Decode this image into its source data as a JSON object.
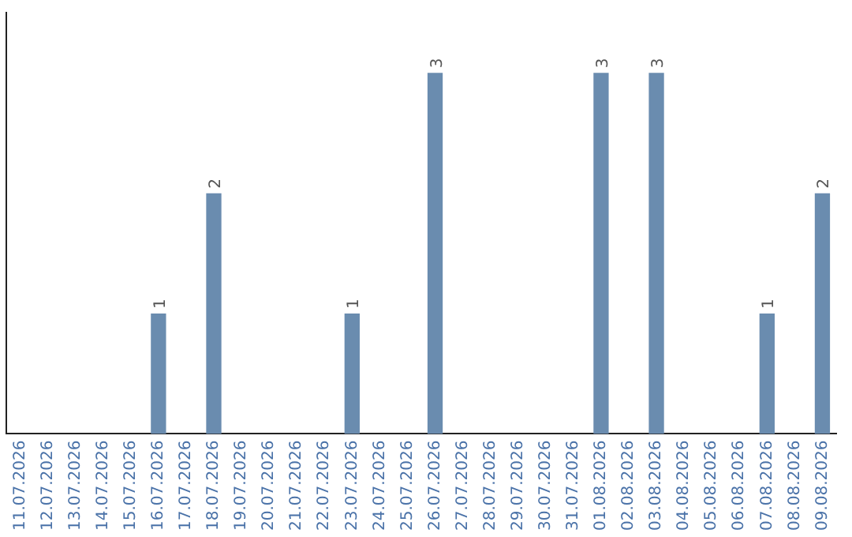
{
  "chart_data": {
    "type": "bar",
    "categories": [
      "11.07.2026",
      "12.07.2026",
      "13.07.2026",
      "14.07.2026",
      "15.07.2026",
      "16.07.2026",
      "17.07.2026",
      "18.07.2026",
      "19.07.2026",
      "20.07.2026",
      "21.07.2026",
      "22.07.2026",
      "23.07.2026",
      "24.07.2026",
      "25.07.2026",
      "26.07.2026",
      "27.07.2026",
      "28.07.2026",
      "29.07.2026",
      "30.07.2026",
      "31.07.2026",
      "01.08.2026",
      "02.08.2026",
      "03.08.2026",
      "04.08.2026",
      "05.08.2026",
      "06.08.2026",
      "07.08.2026",
      "08.08.2026",
      "09.08.2026"
    ],
    "values": [
      0,
      0,
      0,
      0,
      0,
      1,
      0,
      2,
      0,
      0,
      0,
      0,
      1,
      0,
      0,
      3,
      0,
      0,
      0,
      0,
      0,
      3,
      0,
      3,
      0,
      0,
      0,
      1,
      0,
      2
    ],
    "value_labels": [
      null,
      null,
      null,
      null,
      null,
      "1",
      null,
      "2",
      null,
      null,
      null,
      null,
      "1",
      null,
      null,
      "3",
      null,
      null,
      null,
      null,
      null,
      "3",
      null,
      "3",
      null,
      null,
      null,
      "1",
      null,
      "2"
    ],
    "color": "#6a8caf",
    "grid": false,
    "legend": false
  }
}
